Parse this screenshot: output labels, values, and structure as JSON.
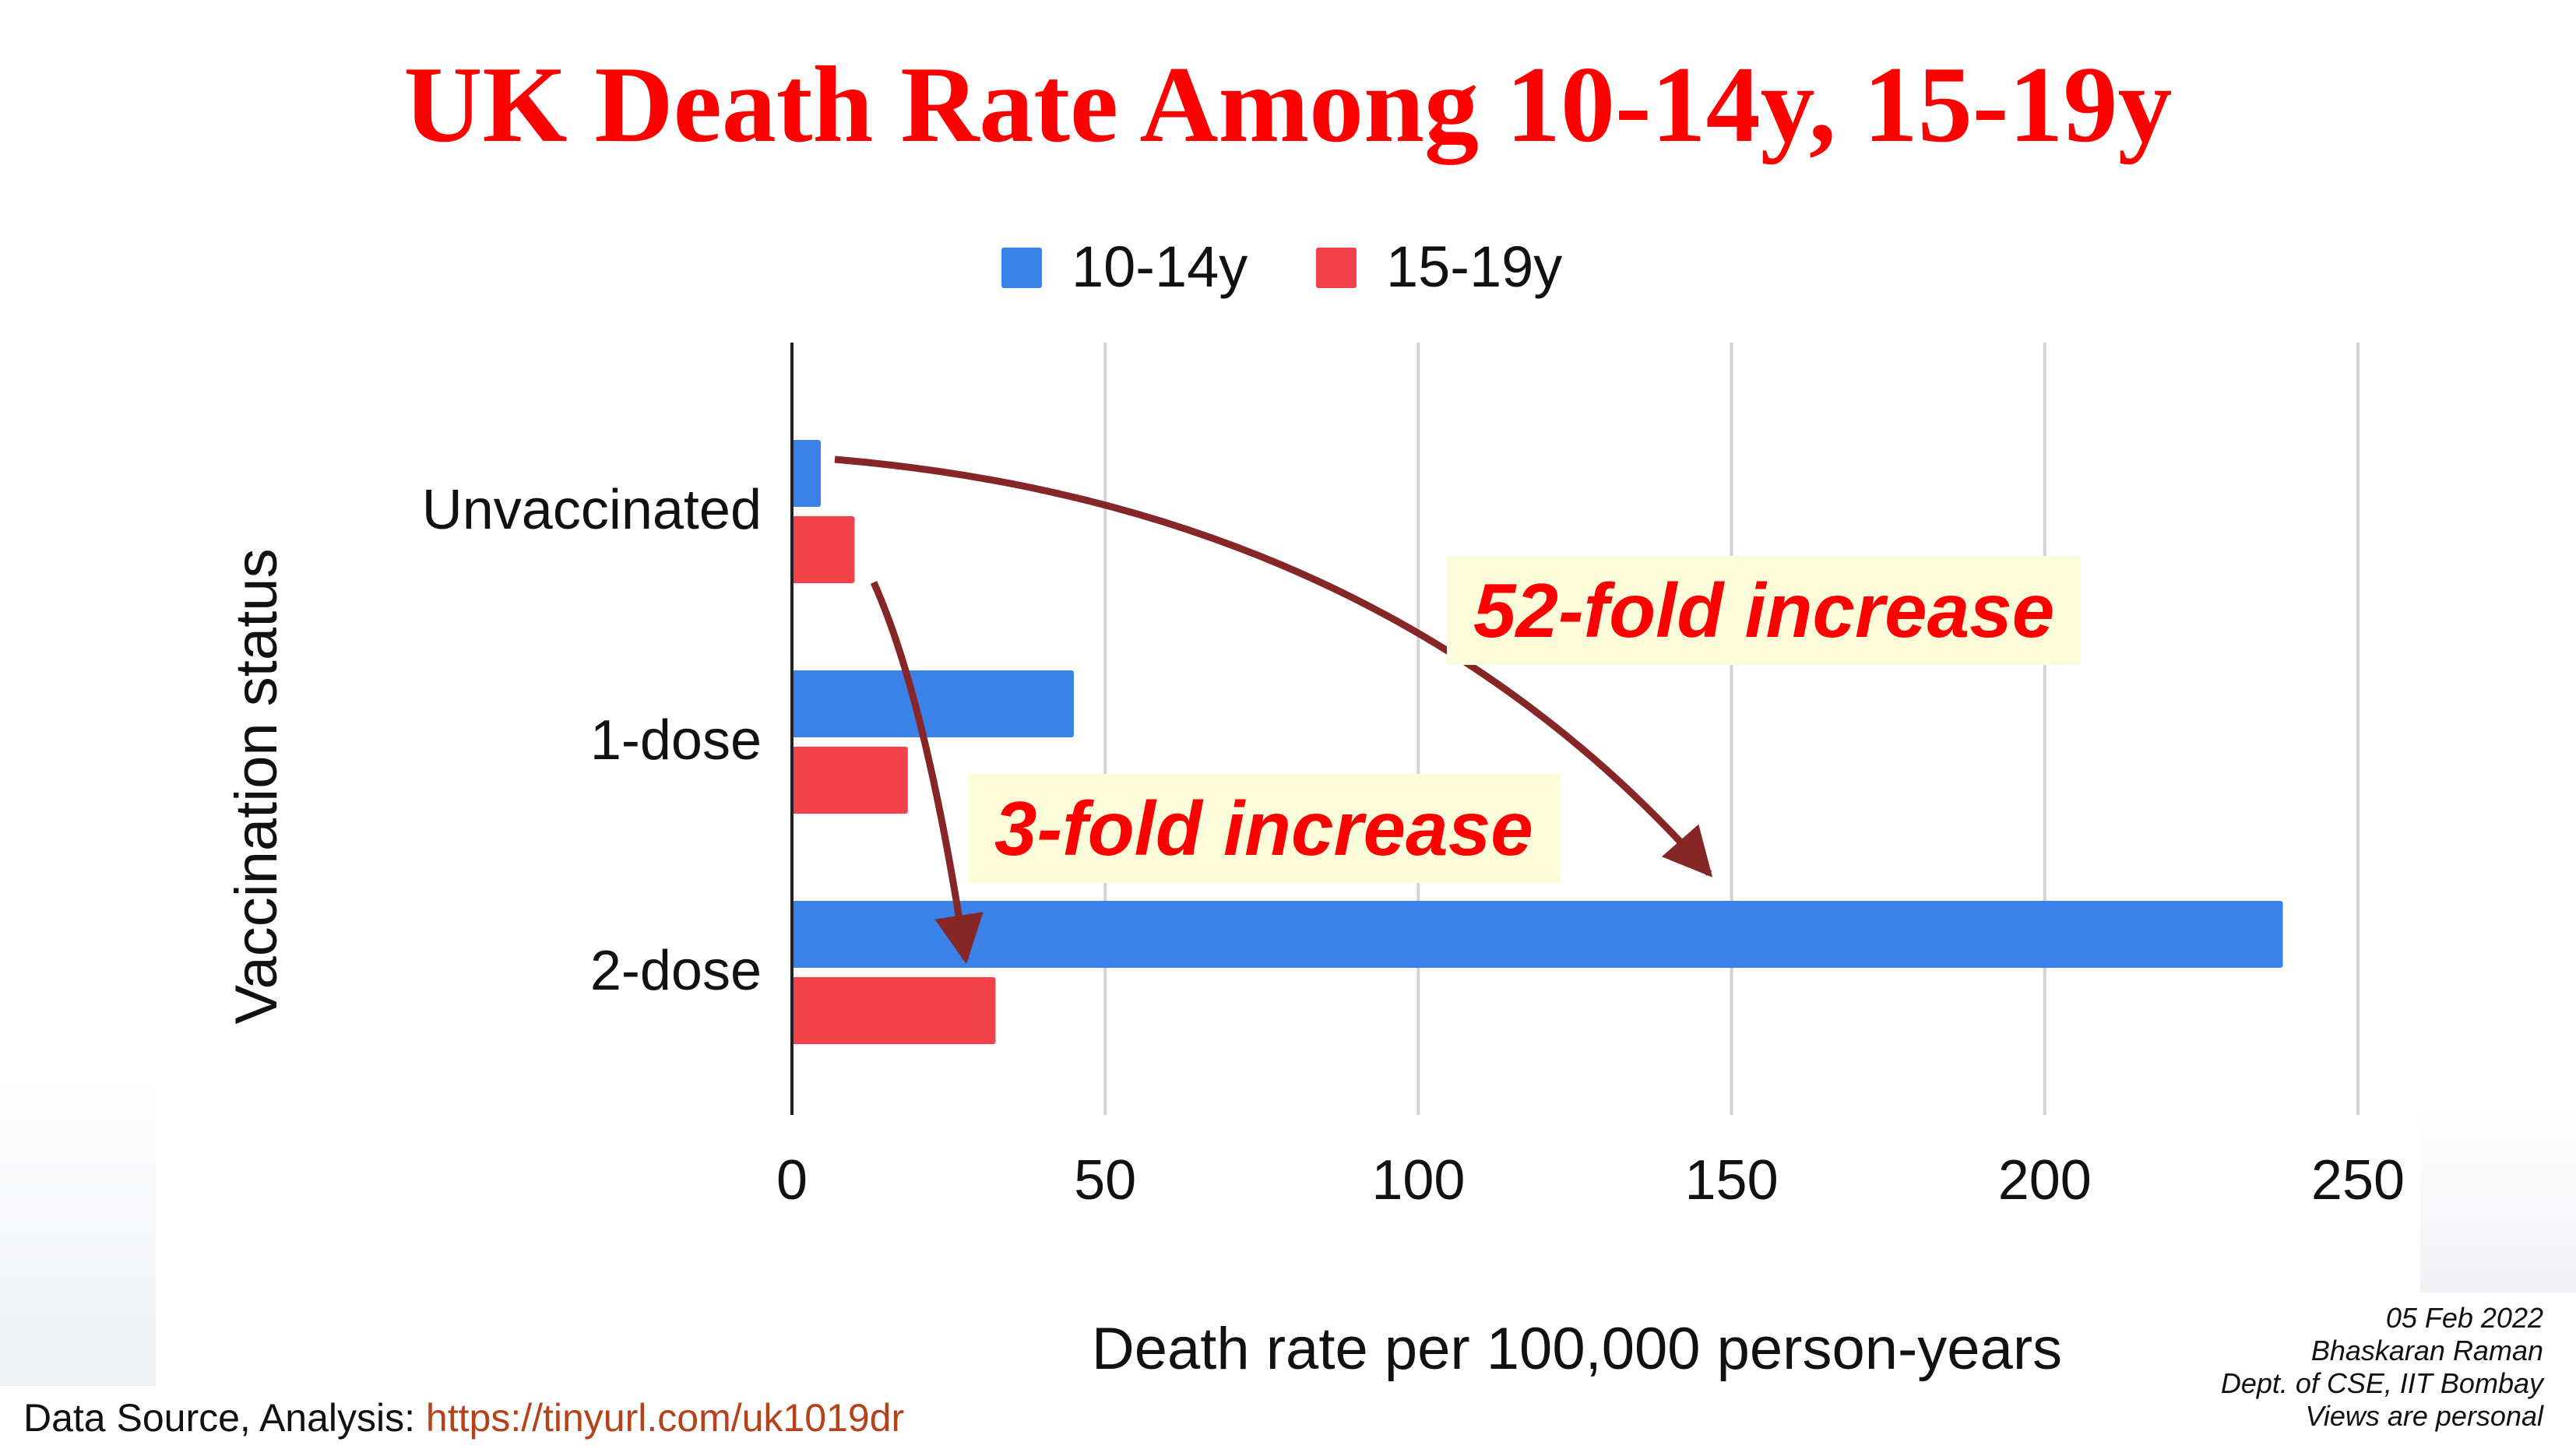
{
  "slide": {
    "title": "UK Death Rate Among 10-14y, 15-19y",
    "source_label": "Data Source, Analysis: ",
    "source_link": "https://tinyurl.com/uk1019dr",
    "credits": [
      "05 Feb 2022",
      "Bhaskaran Raman",
      "Dept. of CSE, IIT Bombay",
      "Views are personal"
    ]
  },
  "annotations": {
    "fold52": "52-fold increase",
    "fold3": "3-fold increase"
  },
  "colors": {
    "title": "#ff0000",
    "series_10_14": "#3b82e8",
    "series_15_19": "#f2414a",
    "arrow": "#862626",
    "annotation_bg": "#fdfddc",
    "grid": "#d3d3d3",
    "link": "#b5421b"
  },
  "chart_data": {
    "type": "bar",
    "orientation": "horizontal",
    "categories": [
      "Unvaccinated",
      "1-dose",
      "2-dose"
    ],
    "series": [
      {
        "name": "10-14y",
        "values": [
          4.6,
          45,
          238
        ]
      },
      {
        "name": "15-19y",
        "values": [
          10,
          18.5,
          32.5
        ]
      }
    ],
    "xlabel": "Death rate per 100,000 person-years",
    "ylabel": "Vaccination status",
    "xlim": [
      0,
      250
    ],
    "xticks": [
      0,
      50,
      100,
      150,
      200,
      250
    ],
    "grid": true,
    "legend_position": "top"
  }
}
